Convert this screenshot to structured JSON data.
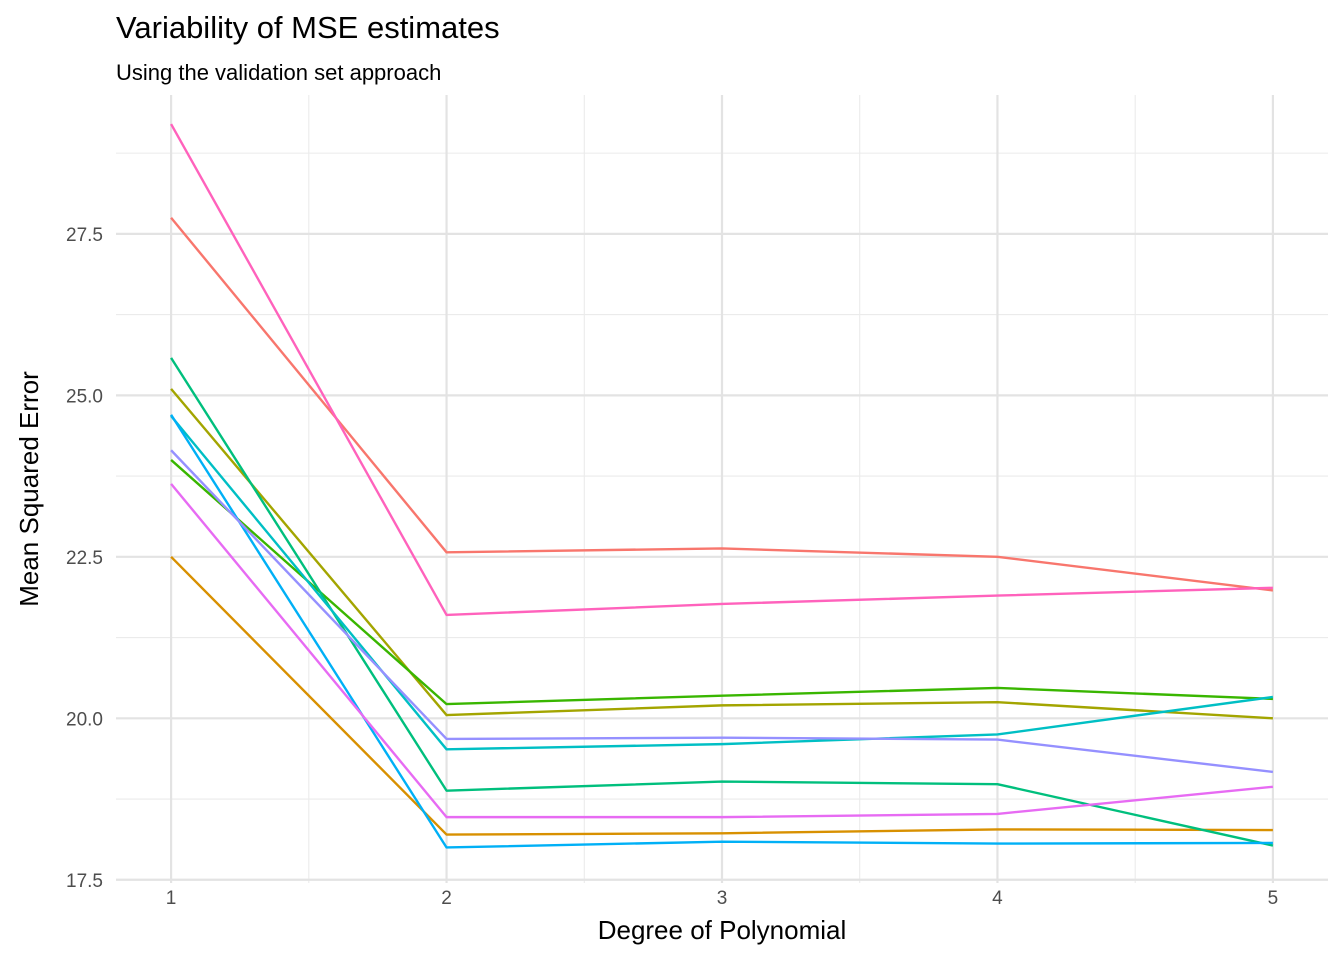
{
  "chart_data": {
    "type": "line",
    "title": "Variability of MSE estimates",
    "subtitle": "Using the validation set approach",
    "xlabel": "Degree of Polynomial",
    "ylabel": "Mean Squared Error",
    "x": [
      1,
      2,
      3,
      4,
      5
    ],
    "x_ticks": [
      "1",
      "2",
      "3",
      "4",
      "5"
    ],
    "y_ticks": [
      "17.5",
      "20.0",
      "22.5",
      "25.0",
      "27.5"
    ],
    "xlim": [
      0.8,
      5.2
    ],
    "ylim": [
      17.45,
      29.65
    ],
    "grid": true,
    "legend": "none",
    "series": [
      {
        "color": "#F8766D",
        "values": [
          27.75,
          22.57,
          22.63,
          22.5,
          21.98
        ]
      },
      {
        "color": "#D89000",
        "values": [
          22.5,
          18.2,
          18.22,
          18.28,
          18.27
        ]
      },
      {
        "color": "#A3A500",
        "values": [
          25.1,
          20.05,
          20.2,
          20.25,
          20.0
        ]
      },
      {
        "color": "#39B600",
        "values": [
          24.0,
          20.22,
          20.35,
          20.47,
          20.3
        ]
      },
      {
        "color": "#00BF7D",
        "values": [
          25.58,
          18.88,
          19.02,
          18.98,
          18.03
        ]
      },
      {
        "color": "#00BFC4",
        "values": [
          24.68,
          19.52,
          19.6,
          19.75,
          20.33
        ]
      },
      {
        "color": "#00B0F6",
        "values": [
          24.7,
          18.0,
          18.09,
          18.06,
          18.07
        ]
      },
      {
        "color": "#9590FF",
        "values": [
          24.15,
          19.68,
          19.7,
          19.67,
          19.17
        ]
      },
      {
        "color": "#E76BF3",
        "values": [
          23.63,
          18.47,
          18.47,
          18.52,
          18.94
        ]
      },
      {
        "color": "#FF62BC",
        "values": [
          29.2,
          21.6,
          21.77,
          21.9,
          22.02
        ]
      }
    ]
  }
}
